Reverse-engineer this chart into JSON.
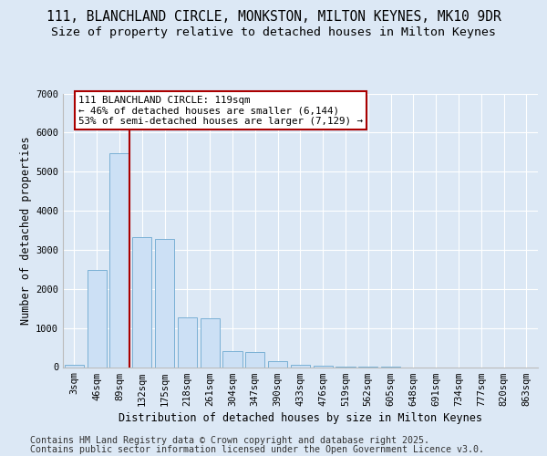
{
  "title_line1": "111, BLANCHLAND CIRCLE, MONKSTON, MILTON KEYNES, MK10 9DR",
  "title_line2": "Size of property relative to detached houses in Milton Keynes",
  "xlabel": "Distribution of detached houses by size in Milton Keynes",
  "ylabel": "Number of detached properties",
  "categories": [
    "3sqm",
    "46sqm",
    "89sqm",
    "132sqm",
    "175sqm",
    "218sqm",
    "261sqm",
    "304sqm",
    "347sqm",
    "390sqm",
    "433sqm",
    "476sqm",
    "519sqm",
    "562sqm",
    "605sqm",
    "648sqm",
    "691sqm",
    "734sqm",
    "777sqm",
    "820sqm",
    "863sqm"
  ],
  "values": [
    55,
    2480,
    5480,
    3320,
    3280,
    1280,
    1260,
    410,
    395,
    145,
    50,
    28,
    8,
    3,
    1,
    0,
    0,
    0,
    0,
    0,
    0
  ],
  "bar_color": "#cce0f5",
  "bar_edge_color": "#7ab0d4",
  "vline_color": "#aa0000",
  "vline_x": 2.425,
  "annotation_text": "111 BLANCHLAND CIRCLE: 119sqm\n← 46% of detached houses are smaller (6,144)\n53% of semi-detached houses are larger (7,129) →",
  "annotation_box_facecolor": "#ffffff",
  "annotation_box_edgecolor": "#aa0000",
  "ylim": [
    0,
    7000
  ],
  "yticks": [
    0,
    1000,
    2000,
    3000,
    4000,
    5000,
    6000,
    7000
  ],
  "bg_color": "#dce8f5",
  "grid_color": "#ffffff",
  "footer_line1": "Contains HM Land Registry data © Crown copyright and database right 2025.",
  "footer_line2": "Contains public sector information licensed under the Open Government Licence v3.0."
}
